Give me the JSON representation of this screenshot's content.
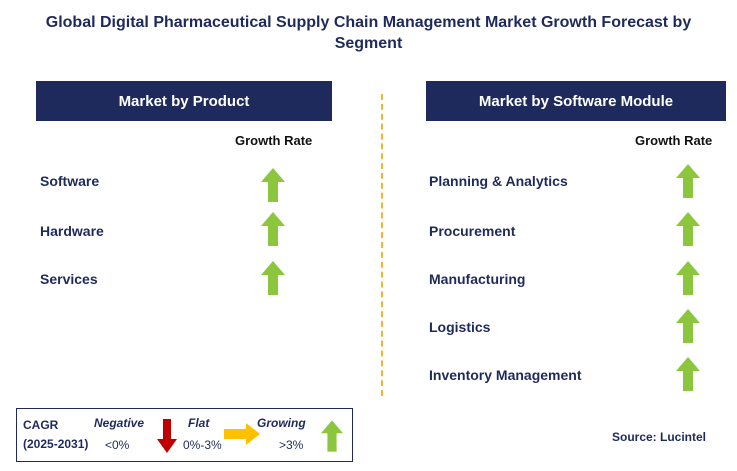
{
  "title": "Global Digital Pharmaceutical Supply Chain Management Market Growth Forecast by Segment",
  "left_panel": {
    "header": "Market by Product",
    "growth_label": "Growth Rate",
    "items": [
      "Software",
      "Hardware",
      "Services"
    ]
  },
  "right_panel": {
    "header": "Market by Software Module",
    "growth_label": "Growth Rate",
    "items": [
      "Planning & Analytics",
      "Procurement",
      "Manufacturing",
      "Logistics",
      "Inventory Management"
    ]
  },
  "legend": {
    "cagr_label": "CAGR",
    "period": "(2025-2031)",
    "negative_label": "Negative",
    "negative_range": "<0%",
    "flat_label": "Flat",
    "flat_range": "0%-3%",
    "growing_label": "Growing",
    "growing_range": ">3%"
  },
  "source": "Source: Lucintel",
  "colors": {
    "navy": "#1f2a5c",
    "growing_arrow": "#8cc63f",
    "negative_arrow": "#c00000",
    "flat_arrow": "#ffc000",
    "divider": "#f5b335"
  }
}
